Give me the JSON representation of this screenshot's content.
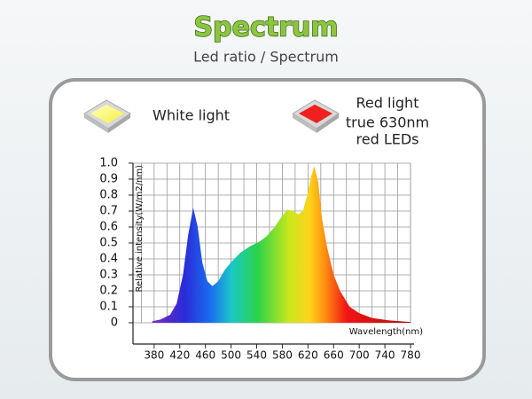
{
  "chart_data": {
    "type": "area",
    "title": "Spectrum",
    "subtitle": "Led ratio / Spectrum",
    "annotations": [
      "White light",
      "Red light",
      "true 630nm",
      "red LEDs"
    ],
    "x_label": "Wavelength(nm)",
    "y_label": "Relative intensity(W/m2/nm)",
    "x": [
      377,
      390,
      405,
      415,
      425,
      433,
      441,
      448,
      455,
      463,
      471,
      480,
      490,
      500,
      515,
      530,
      545,
      555,
      568,
      580,
      588,
      596,
      605,
      612,
      619,
      625,
      630,
      636,
      642,
      650,
      660,
      670,
      685,
      700,
      720,
      745,
      780
    ],
    "values": [
      0.01,
      0.02,
      0.05,
      0.12,
      0.3,
      0.55,
      0.72,
      0.6,
      0.38,
      0.26,
      0.23,
      0.26,
      0.33,
      0.38,
      0.44,
      0.48,
      0.51,
      0.54,
      0.6,
      0.67,
      0.71,
      0.7,
      0.68,
      0.7,
      0.8,
      0.92,
      0.98,
      0.88,
      0.65,
      0.47,
      0.3,
      0.2,
      0.1,
      0.06,
      0.03,
      0.015,
      0.005
    ],
    "xlim": [
      347,
      780
    ],
    "ylim": [
      0,
      1
    ],
    "xticks": [
      380,
      420,
      460,
      500,
      540,
      580,
      620,
      660,
      700,
      740,
      780
    ],
    "yticks": [
      {
        "value": 1,
        "label": "1.0"
      },
      0.9,
      0.8,
      0.7,
      0.6,
      0.5,
      0.4,
      0.3,
      0.2,
      0.1,
      0
    ],
    "grid": true
  }
}
